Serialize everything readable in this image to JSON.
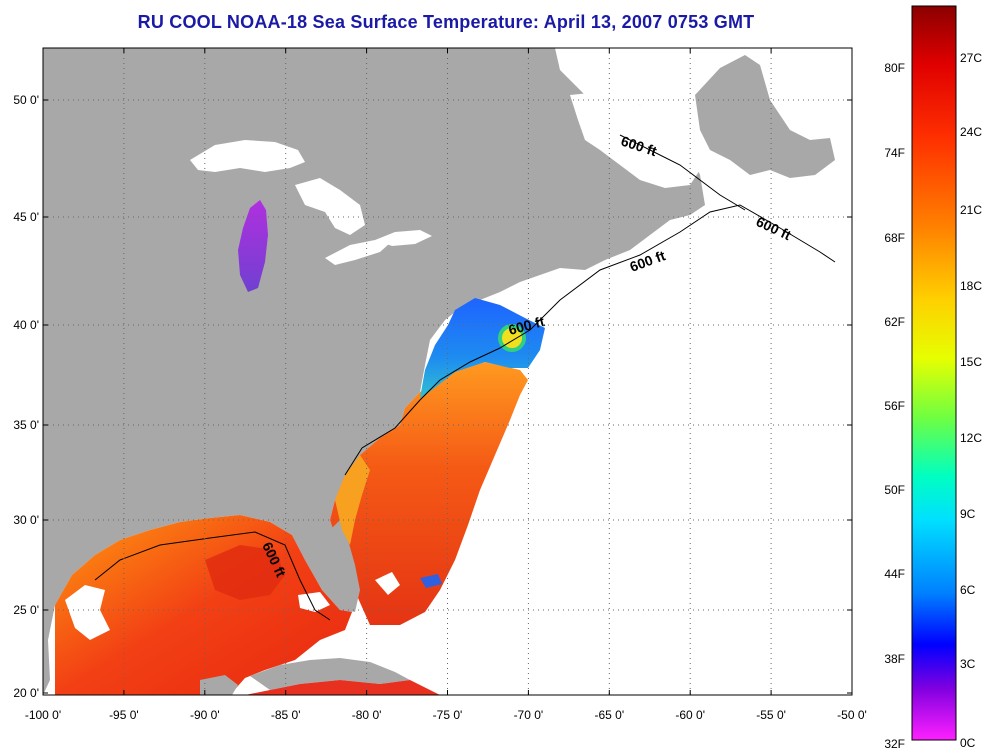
{
  "title": "RU COOL  NOAA-18  Sea Surface Temperature:  April 13, 2007 0753 GMT",
  "x_ticks": [
    "-100 0'",
    "-95 0'",
    "-90 0'",
    "-85 0'",
    "-80 0'",
    "-75 0'",
    "-70 0'",
    "-65 0'",
    "-60 0'",
    "-55 0'",
    "-50 0'"
  ],
  "y_ticks": [
    "50 0'",
    "45 0'",
    "40 0'",
    "35 0'",
    "30 0'",
    "25 0'",
    "20 0'"
  ],
  "contour_label": "600 ft",
  "colorbar": {
    "fahrenheit": [
      "80F",
      "74F",
      "68F",
      "62F",
      "56F",
      "50F",
      "44F",
      "38F",
      "32F"
    ],
    "celsius": [
      "27C",
      "24C",
      "21C",
      "18C",
      "15C",
      "12C",
      "9C",
      "6C",
      "3C",
      "0C"
    ]
  },
  "colors": {
    "land": "#a8a8a8",
    "no_data": "#ffffff",
    "title": "#1a1aa6",
    "warm": "#e83a10",
    "cold": "#1e50e6"
  }
}
